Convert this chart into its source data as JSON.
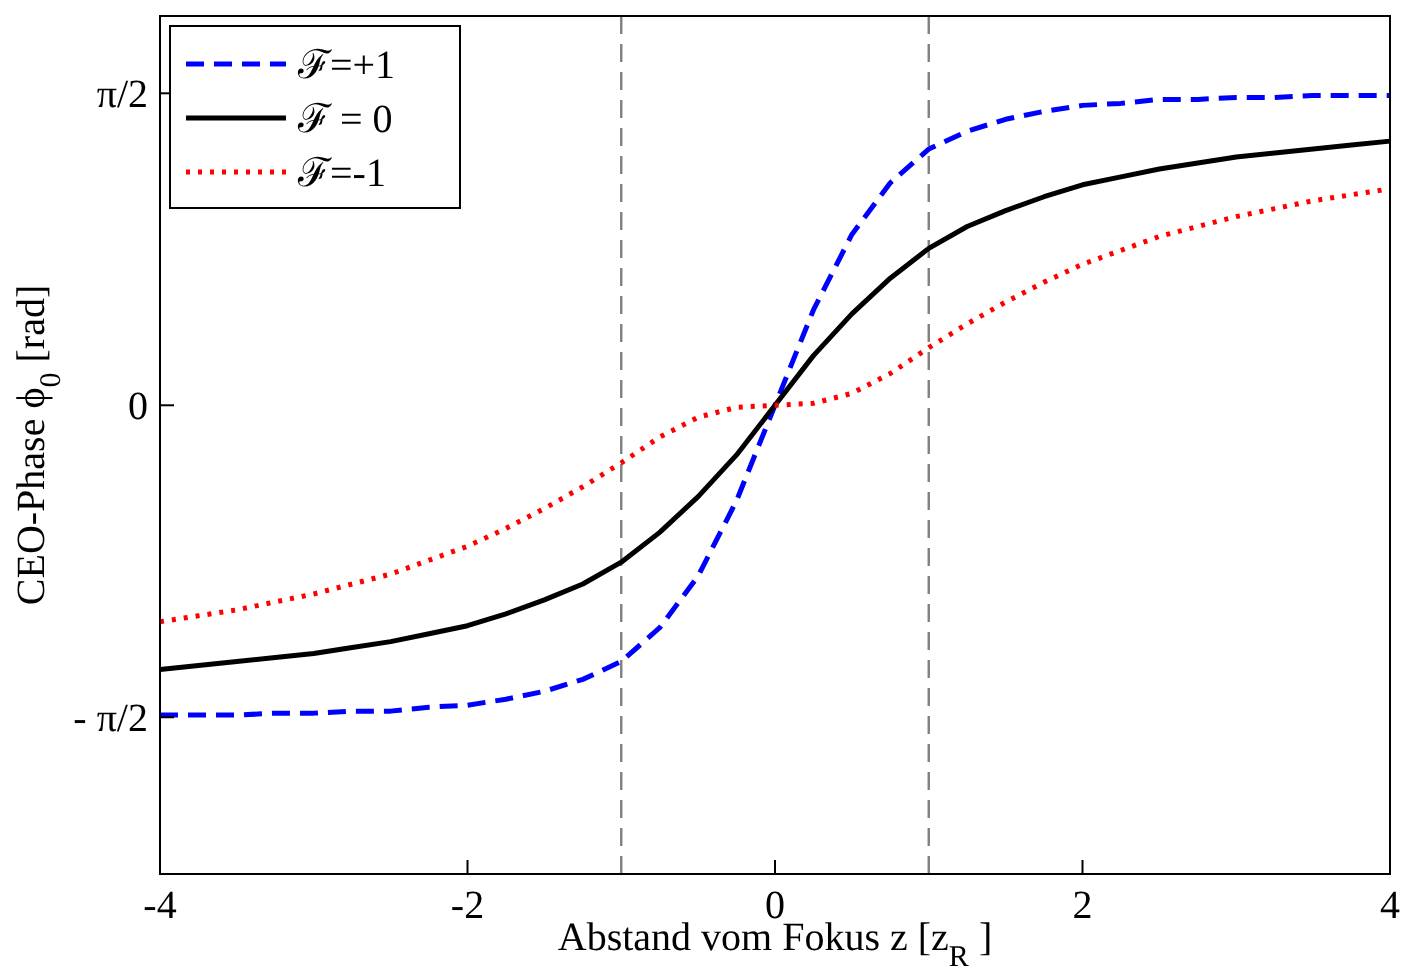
{
  "chart_data": {
    "type": "line",
    "xlabel": "Abstand vom Fokus  z [z$_{R}$]",
    "ylabel": "CEO-Phase   ϕ$_{0}$ [rad]",
    "x": [
      -4,
      -3.75,
      -3.5,
      -3.25,
      -3,
      -2.75,
      -2.5,
      -2.25,
      -2,
      -1.75,
      -1.5,
      -1.25,
      -1,
      -0.75,
      -0.5,
      -0.25,
      0,
      0.25,
      0.5,
      0.75,
      1,
      1.25,
      1.5,
      1.75,
      2,
      2.25,
      2.5,
      2.75,
      3,
      3.25,
      3.5,
      3.75,
      4
    ],
    "series": [
      {
        "name": "ℱ=+1",
        "color": "#0000ff",
        "line_style": "dashed",
        "values": [
          -1.56,
          -1.56,
          -1.56,
          -1.55,
          -1.55,
          -1.54,
          -1.54,
          -1.52,
          -1.51,
          -1.48,
          -1.44,
          -1.38,
          -1.29,
          -1.12,
          -0.86,
          -0.48,
          0,
          0.48,
          0.86,
          1.12,
          1.29,
          1.38,
          1.44,
          1.48,
          1.51,
          1.52,
          1.54,
          1.54,
          1.55,
          1.55,
          1.56,
          1.56,
          1.56
        ]
      },
      {
        "name": "ℱ = 0",
        "color": "#000000",
        "line_style": "solid",
        "values": [
          -1.33,
          -1.31,
          -1.29,
          -1.27,
          -1.25,
          -1.22,
          -1.19,
          -1.15,
          -1.11,
          -1.05,
          -0.98,
          -0.9,
          -0.79,
          -0.64,
          -0.46,
          -0.25,
          0,
          0.25,
          0.46,
          0.64,
          0.79,
          0.9,
          0.98,
          1.05,
          1.11,
          1.15,
          1.19,
          1.22,
          1.25,
          1.27,
          1.29,
          1.31,
          1.33
        ]
      },
      {
        "name": "ℱ=-1",
        "color": "#ff0000",
        "line_style": "dotted",
        "values": [
          -1.09,
          -1.06,
          -1.03,
          -0.99,
          -0.95,
          -0.9,
          -0.85,
          -0.78,
          -0.71,
          -0.62,
          -0.52,
          -0.41,
          -0.29,
          -0.16,
          -0.06,
          -0.01,
          0,
          0.01,
          0.06,
          0.16,
          0.29,
          0.41,
          0.52,
          0.62,
          0.71,
          0.78,
          0.85,
          0.9,
          0.95,
          0.99,
          1.03,
          1.06,
          1.09
        ]
      }
    ],
    "xlim": [
      -4,
      4
    ],
    "xticks": [
      -4,
      -2,
      0,
      2,
      4
    ],
    "ylim": [
      -2.36,
      1.96
    ],
    "yticks": [
      {
        "value": -1.5708,
        "label": "- π/2"
      },
      0,
      {
        "value": 1.5708,
        "label": "π/2"
      }
    ],
    "ref_lines": [
      {
        "axis": "x",
        "value": -1,
        "color": "#808080",
        "line_style": "dashed"
      },
      {
        "axis": "x",
        "value": 1,
        "color": "#808080",
        "line_style": "dashed"
      }
    ],
    "legend": "top left",
    "grid": false
  }
}
